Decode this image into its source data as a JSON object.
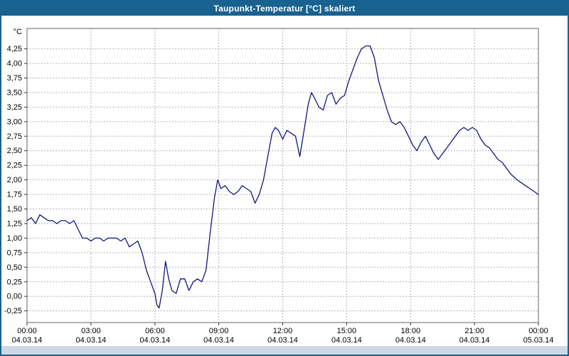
{
  "window": {
    "title": "Taupunkt-Temperatur [°C] skaliert"
  },
  "theme": {
    "titlebar_bg": "#19618f",
    "titlebar_fg": "#ffffff",
    "page_bg": "#ffffff",
    "footer_bg": "#ccd9e5",
    "border_color": "#19618f",
    "grid_color": "#b3b3b3",
    "plot_border_color": "#666666",
    "tick_color": "#333333",
    "line_color": "#14147d"
  },
  "chart_data": {
    "type": "line",
    "title": "Taupunkt-Temperatur [°C] skaliert",
    "ylabel": "°C",
    "xlabel": "",
    "grid": "dashed",
    "legend_position": "none",
    "ylim": [
      -0.45,
      4.6
    ],
    "x_range_hours": [
      0,
      24
    ],
    "yticks": [
      -0.25,
      0.0,
      0.25,
      0.5,
      0.75,
      1.0,
      1.25,
      1.5,
      1.75,
      2.0,
      2.25,
      2.5,
      2.75,
      3.0,
      3.25,
      3.5,
      3.75,
      4.0,
      4.25
    ],
    "ytick_labels": [
      "-0,25",
      "0,00",
      "0,25",
      "0,50",
      "0,75",
      "1,00",
      "1,25",
      "1,50",
      "1,75",
      "2,00",
      "2,25",
      "2,50",
      "2,75",
      "3,00",
      "3,25",
      "3,50",
      "3,75",
      "4,00",
      "4,25"
    ],
    "xticks": [
      {
        "hour": 0,
        "time": "00:00",
        "date": "04.03.14"
      },
      {
        "hour": 3,
        "time": "03:00",
        "date": "04.03.14"
      },
      {
        "hour": 6,
        "time": "06:00",
        "date": "04.03.14"
      },
      {
        "hour": 9,
        "time": "09:00",
        "date": "04.03.14"
      },
      {
        "hour": 12,
        "time": "12:00",
        "date": "04.03.14"
      },
      {
        "hour": 15,
        "time": "15:00",
        "date": "04.03.14"
      },
      {
        "hour": 18,
        "time": "18:00",
        "date": "04.03.14"
      },
      {
        "hour": 21,
        "time": "21:00",
        "date": "04.03.14"
      },
      {
        "hour": 24,
        "time": "00:00",
        "date": "05.03.14"
      }
    ],
    "series": [
      {
        "name": "Taupunkt-Temperatur",
        "color": "#14147d",
        "points": [
          [
            0.0,
            1.3
          ],
          [
            0.2,
            1.35
          ],
          [
            0.4,
            1.25
          ],
          [
            0.6,
            1.4
          ],
          [
            0.8,
            1.35
          ],
          [
            1.0,
            1.3
          ],
          [
            1.2,
            1.3
          ],
          [
            1.4,
            1.25
          ],
          [
            1.6,
            1.3
          ],
          [
            1.8,
            1.3
          ],
          [
            2.0,
            1.25
          ],
          [
            2.2,
            1.3
          ],
          [
            2.4,
            1.15
          ],
          [
            2.6,
            1.0
          ],
          [
            2.8,
            1.0
          ],
          [
            3.0,
            0.95
          ],
          [
            3.2,
            1.0
          ],
          [
            3.4,
            1.0
          ],
          [
            3.6,
            0.95
          ],
          [
            3.8,
            1.0
          ],
          [
            4.0,
            1.0
          ],
          [
            4.2,
            1.0
          ],
          [
            4.4,
            0.95
          ],
          [
            4.6,
            1.0
          ],
          [
            4.8,
            0.85
          ],
          [
            5.0,
            0.9
          ],
          [
            5.2,
            0.95
          ],
          [
            5.4,
            0.75
          ],
          [
            5.6,
            0.45
          ],
          [
            5.8,
            0.25
          ],
          [
            6.0,
            0.05
          ],
          [
            6.1,
            -0.15
          ],
          [
            6.2,
            -0.2
          ],
          [
            6.35,
            0.1
          ],
          [
            6.5,
            0.6
          ],
          [
            6.65,
            0.3
          ],
          [
            6.8,
            0.1
          ],
          [
            7.0,
            0.05
          ],
          [
            7.2,
            0.3
          ],
          [
            7.4,
            0.3
          ],
          [
            7.6,
            0.1
          ],
          [
            7.8,
            0.25
          ],
          [
            8.0,
            0.3
          ],
          [
            8.2,
            0.25
          ],
          [
            8.4,
            0.45
          ],
          [
            8.6,
            1.1
          ],
          [
            8.8,
            1.7
          ],
          [
            8.95,
            2.0
          ],
          [
            9.1,
            1.85
          ],
          [
            9.3,
            1.9
          ],
          [
            9.5,
            1.8
          ],
          [
            9.7,
            1.75
          ],
          [
            9.9,
            1.8
          ],
          [
            10.1,
            1.9
          ],
          [
            10.3,
            1.85
          ],
          [
            10.5,
            1.8
          ],
          [
            10.7,
            1.6
          ],
          [
            10.9,
            1.75
          ],
          [
            11.1,
            2.0
          ],
          [
            11.3,
            2.4
          ],
          [
            11.5,
            2.8
          ],
          [
            11.65,
            2.9
          ],
          [
            11.8,
            2.85
          ],
          [
            12.0,
            2.7
          ],
          [
            12.2,
            2.85
          ],
          [
            12.4,
            2.8
          ],
          [
            12.6,
            2.75
          ],
          [
            12.8,
            2.4
          ],
          [
            13.0,
            2.85
          ],
          [
            13.2,
            3.3
          ],
          [
            13.35,
            3.5
          ],
          [
            13.5,
            3.4
          ],
          [
            13.7,
            3.25
          ],
          [
            13.9,
            3.2
          ],
          [
            14.1,
            3.45
          ],
          [
            14.3,
            3.5
          ],
          [
            14.5,
            3.3
          ],
          [
            14.7,
            3.4
          ],
          [
            14.9,
            3.45
          ],
          [
            15.1,
            3.7
          ],
          [
            15.3,
            3.9
          ],
          [
            15.5,
            4.1
          ],
          [
            15.7,
            4.25
          ],
          [
            15.9,
            4.3
          ],
          [
            16.1,
            4.3
          ],
          [
            16.3,
            4.1
          ],
          [
            16.5,
            3.7
          ],
          [
            16.7,
            3.45
          ],
          [
            16.9,
            3.2
          ],
          [
            17.1,
            3.0
          ],
          [
            17.3,
            2.95
          ],
          [
            17.5,
            3.0
          ],
          [
            17.7,
            2.9
          ],
          [
            17.9,
            2.75
          ],
          [
            18.1,
            2.6
          ],
          [
            18.3,
            2.5
          ],
          [
            18.5,
            2.65
          ],
          [
            18.7,
            2.75
          ],
          [
            18.9,
            2.6
          ],
          [
            19.1,
            2.45
          ],
          [
            19.3,
            2.35
          ],
          [
            19.5,
            2.45
          ],
          [
            19.7,
            2.55
          ],
          [
            19.9,
            2.65
          ],
          [
            20.1,
            2.75
          ],
          [
            20.3,
            2.85
          ],
          [
            20.5,
            2.9
          ],
          [
            20.7,
            2.85
          ],
          [
            20.9,
            2.9
          ],
          [
            21.1,
            2.85
          ],
          [
            21.3,
            2.7
          ],
          [
            21.5,
            2.6
          ],
          [
            21.7,
            2.55
          ],
          [
            21.9,
            2.45
          ],
          [
            22.1,
            2.35
          ],
          [
            22.3,
            2.3
          ],
          [
            22.5,
            2.2
          ],
          [
            22.7,
            2.1
          ],
          [
            23.0,
            2.0
          ],
          [
            23.2,
            1.95
          ],
          [
            23.4,
            1.9
          ],
          [
            23.6,
            1.85
          ],
          [
            23.8,
            1.8
          ],
          [
            24.0,
            1.75
          ]
        ]
      }
    ]
  }
}
